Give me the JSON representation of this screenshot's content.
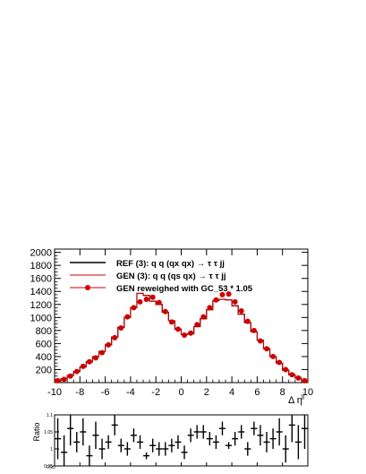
{
  "chart_data": [
    {
      "type": "line",
      "xlabel": "Δ η",
      "xlabel_superscript": "jj",
      "xlim": [
        -10,
        10
      ],
      "ylim": [
        0,
        2050
      ],
      "x_ticks": [
        -10,
        -8,
        -6,
        -4,
        -2,
        0,
        2,
        4,
        6,
        8,
        10
      ],
      "y_ticks": [
        200,
        400,
        600,
        800,
        1000,
        1200,
        1400,
        1600,
        1800,
        2000
      ],
      "bin_edges": [
        -10,
        -9.5,
        -9,
        -8.5,
        -8,
        -7.5,
        -7,
        -6.5,
        -6,
        -5.5,
        -5,
        -4.5,
        -4,
        -3.5,
        -3,
        -2.5,
        -2,
        -1.5,
        -1,
        -0.5,
        0,
        0.5,
        1,
        1.5,
        2,
        2.5,
        3,
        3.5,
        4,
        4.5,
        5,
        5.5,
        6,
        6.5,
        7,
        7.5,
        8,
        8.5,
        9,
        9.5,
        10
      ],
      "bin_centers": [
        -9.75,
        -9.25,
        -8.75,
        -8.25,
        -7.75,
        -7.25,
        -6.75,
        -6.25,
        -5.75,
        -5.25,
        -4.75,
        -4.25,
        -3.75,
        -3.25,
        -2.75,
        -2.25,
        -1.75,
        -1.25,
        -0.75,
        -0.25,
        0.25,
        0.75,
        1.25,
        1.75,
        2.25,
        2.75,
        3.25,
        3.75,
        4.25,
        4.75,
        5.25,
        5.75,
        6.25,
        6.75,
        7.25,
        7.75,
        8.25,
        8.75,
        9.25,
        9.75
      ],
      "legend_position": "top-left",
      "series": [
        {
          "name": "REF (3): q q (qx qx) → τ τ jj",
          "style": "step",
          "color": "#000000",
          "values": [
            30,
            60,
            110,
            170,
            240,
            320,
            400,
            480,
            580,
            700,
            850,
            1000,
            1150,
            1370,
            1340,
            1250,
            1200,
            1080,
            950,
            820,
            740,
            750,
            860,
            980,
            1120,
            1260,
            1280,
            1270,
            1180,
            1050,
            920,
            780,
            650,
            520,
            400,
            300,
            190,
            120,
            70,
            30
          ]
        },
        {
          "name": "GEN (3): q q (qs qx) → τ τ jj",
          "style": "step",
          "color": "#cc0000",
          "values": [
            30,
            60,
            110,
            170,
            240,
            320,
            400,
            480,
            580,
            700,
            850,
            1000,
            1150,
            1370,
            1340,
            1250,
            1200,
            1080,
            950,
            820,
            740,
            750,
            860,
            980,
            1120,
            1260,
            1280,
            1270,
            1180,
            1050,
            920,
            780,
            650,
            520,
            400,
            300,
            190,
            120,
            70,
            30
          ]
        },
        {
          "name": "GEN reweighed with GC_53 * 1.05",
          "style": "markers",
          "color": "#cc0000",
          "values": [
            30,
            50,
            100,
            170,
            250,
            320,
            380,
            460,
            580,
            690,
            840,
            1010,
            1150,
            1240,
            1280,
            1310,
            1230,
            1090,
            930,
            820,
            730,
            760,
            890,
            1010,
            1150,
            1270,
            1350,
            1360,
            1240,
            1100,
            940,
            800,
            640,
            520,
            400,
            310,
            200,
            120,
            70,
            30
          ]
        }
      ]
    },
    {
      "type": "scatter",
      "ylabel": "Ratio",
      "xlim": [
        -10,
        10
      ],
      "ylim": [
        0.95,
        1.1
      ],
      "y_ticks": [
        0.95,
        1,
        1.05,
        1.1
      ],
      "y_tick_labels": [
        "0.95",
        "1",
        "1.05",
        "1.1"
      ],
      "bottom_label": "0.95",
      "x_ticks": [
        -10,
        -8,
        -6,
        -4,
        -2,
        0,
        2,
        4,
        6,
        8,
        10
      ],
      "x": [
        -9.75,
        -9.25,
        -8.75,
        -8.25,
        -7.75,
        -7.25,
        -6.75,
        -6.25,
        -5.75,
        -5.25,
        -4.75,
        -4.25,
        -3.75,
        -3.25,
        -2.75,
        -2.25,
        -1.75,
        -1.25,
        -0.75,
        -0.25,
        0.25,
        0.75,
        1.25,
        1.75,
        2.25,
        2.75,
        3.25,
        3.75,
        4.25,
        4.75,
        5.25,
        5.75,
        6.25,
        6.75,
        7.25,
        7.75,
        8.25,
        8.75,
        9.25,
        9.75
      ],
      "values": [
        1.03,
        0.99,
        1.06,
        1.02,
        1.05,
        0.98,
        1.04,
        1.0,
        1.02,
        1.07,
        1.01,
        1.0,
        1.04,
        1.02,
        0.98,
        1.01,
        1.0,
        1.0,
        1.01,
        1.02,
        0.99,
        1.04,
        1.05,
        1.05,
        1.03,
        1.02,
        1.06,
        1.01,
        1.03,
        1.05,
        1.0,
        1.06,
        1.04,
        1.02,
        1.03,
        1.05,
        1.0,
        1.07,
        1.02,
        1.06
      ],
      "errors": [
        0.06,
        0.05,
        0.05,
        0.03,
        0.04,
        0.03,
        0.04,
        0.03,
        0.02,
        0.03,
        0.02,
        0.02,
        0.02,
        0.02,
        0.01,
        0.02,
        0.02,
        0.02,
        0.02,
        0.02,
        0.02,
        0.02,
        0.02,
        0.02,
        0.02,
        0.02,
        0.02,
        0.01,
        0.02,
        0.02,
        0.02,
        0.02,
        0.03,
        0.03,
        0.03,
        0.04,
        0.04,
        0.05,
        0.05,
        0.06
      ]
    }
  ]
}
